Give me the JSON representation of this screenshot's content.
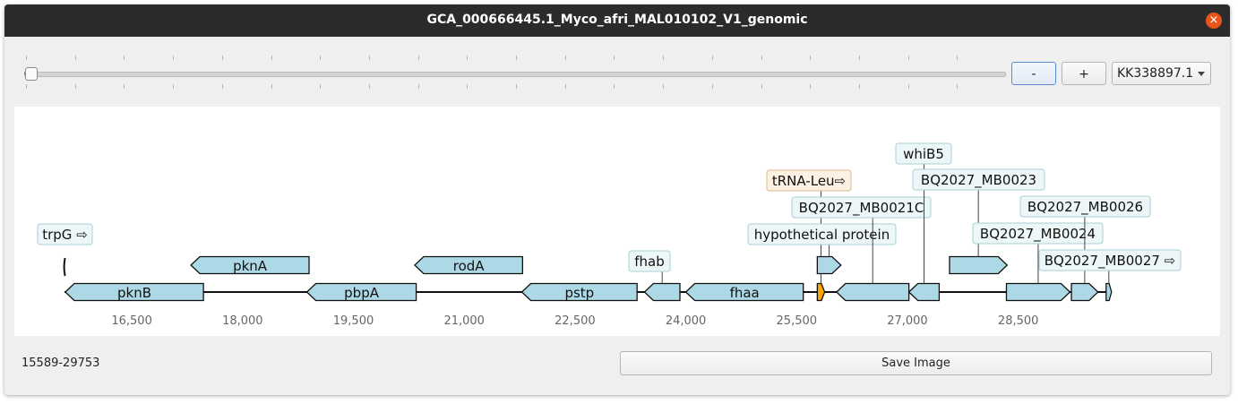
{
  "window": {
    "title": "GCA_000666445.1_Myco_afri_MAL010102_V1_genomic",
    "close_glyph": "×"
  },
  "toolbar": {
    "zoom_out_label": "-",
    "zoom_in_label": "+",
    "contig_selected": "KK338897.1",
    "zoom_level_fraction": 0.0
  },
  "view": {
    "range_text": "15589-29753",
    "axis": {
      "min": 15589,
      "max": 29753,
      "ticks": [
        {
          "value": 16500,
          "label": "16,500"
        },
        {
          "value": 18000,
          "label": "18,000"
        },
        {
          "value": 19500,
          "label": "19,500"
        },
        {
          "value": 21000,
          "label": "21,000"
        },
        {
          "value": 22500,
          "label": "22,500"
        },
        {
          "value": 24000,
          "label": "24,000"
        },
        {
          "value": 25500,
          "label": "25,500"
        },
        {
          "value": 27000,
          "label": "27,000"
        },
        {
          "value": 28500,
          "label": "28,500"
        }
      ]
    },
    "features": [
      {
        "id": "trpG",
        "label": "trpG ⇨",
        "start": 15590,
        "end": 15610,
        "strand": "+",
        "track": 0,
        "type": "marker"
      },
      {
        "id": "pknB",
        "label": "pknB",
        "start": 15600,
        "end": 17470,
        "strand": "-",
        "track": 0,
        "type": "gene"
      },
      {
        "id": "pknA",
        "label": "pknA",
        "start": 17300,
        "end": 18900,
        "strand": "-",
        "track": 1,
        "type": "gene"
      },
      {
        "id": "pbpA",
        "label": "pbpA",
        "start": 18870,
        "end": 20350,
        "strand": "-",
        "track": 0,
        "type": "gene"
      },
      {
        "id": "rodA",
        "label": "rodA",
        "start": 20330,
        "end": 21790,
        "strand": "-",
        "track": 1,
        "type": "gene"
      },
      {
        "id": "pstp",
        "label": "pstp",
        "start": 21780,
        "end": 23340,
        "strand": "-",
        "track": 0,
        "type": "gene"
      },
      {
        "id": "fhab",
        "label": "fhab",
        "start": 23440,
        "end": 23920,
        "strand": "-",
        "track": 0,
        "type": "gene"
      },
      {
        "id": "fhaa",
        "label": "fhaa",
        "start": 24000,
        "end": 25590,
        "strand": "-",
        "track": 0,
        "type": "gene"
      },
      {
        "id": "tRNA-Leu",
        "label": "tRNA-Leu⇨",
        "start": 25780,
        "end": 25880,
        "strand": "+",
        "track": 0,
        "type": "tRNA"
      },
      {
        "id": "hypothetical",
        "label": "hypothetical protein",
        "start": 25780,
        "end": 26100,
        "strand": "+",
        "track": 1,
        "type": "gene"
      },
      {
        "id": "MB0021C",
        "label": "BQ2027_MB0021C",
        "start": 26040,
        "end": 27020,
        "strand": "-",
        "track": 0,
        "type": "gene"
      },
      {
        "id": "whiB5",
        "label": "whiB5",
        "start": 27020,
        "end": 27430,
        "strand": "-",
        "track": 0,
        "type": "gene"
      },
      {
        "id": "MB0023",
        "label": "BQ2027_MB0023",
        "start": 27570,
        "end": 28350,
        "strand": "+",
        "track": 1,
        "type": "gene"
      },
      {
        "id": "MB0024",
        "label": "BQ2027_MB0024",
        "start": 28340,
        "end": 29200,
        "strand": "+",
        "track": 0,
        "type": "gene"
      },
      {
        "id": "MB0026",
        "label": "BQ2027_MB0026",
        "start": 29220,
        "end": 29580,
        "strand": "+",
        "track": 0,
        "type": "gene"
      },
      {
        "id": "MB0027",
        "label": "BQ2027_MB0027 ⇨",
        "start": 29690,
        "end": 29750,
        "strand": "+",
        "track": 0,
        "type": "gene"
      }
    ],
    "colors": {
      "gene_fill": "#add8e6",
      "trna_fill": "#ffa500",
      "outline": "#111111",
      "label_bg": "#eef7f8",
      "label_border": "#a9cfd4",
      "trna_label_bg": "#fdf1e4",
      "trna_label_border": "#e1b98c",
      "tick_text": "#666666"
    }
  },
  "footer": {
    "save_label": "Save Image"
  }
}
